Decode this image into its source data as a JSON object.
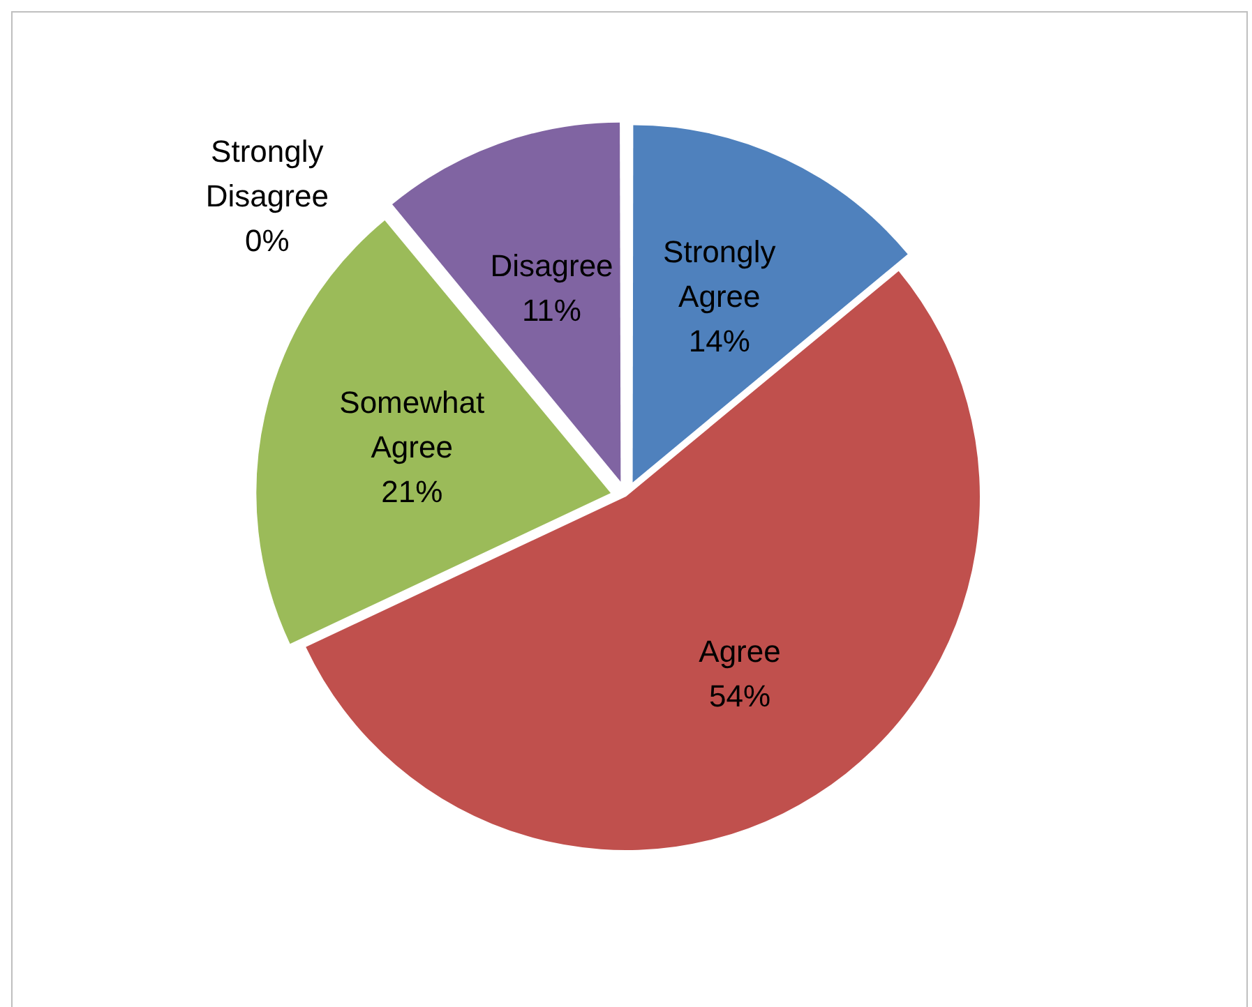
{
  "chart_data": {
    "type": "pie",
    "categories": [
      "Strongly Agree",
      "Agree",
      "Somewhat Agree",
      "Strongly Disagree",
      "Disagree"
    ],
    "values": [
      14,
      54,
      21,
      0,
      11
    ],
    "value_labels": [
      "14%",
      "54%",
      "21%",
      "0%",
      "11%"
    ],
    "colors": [
      "#4f81bd",
      "#c0504d",
      "#9bbb59",
      "#4bacc6",
      "#8064a2"
    ],
    "legend": false
  }
}
